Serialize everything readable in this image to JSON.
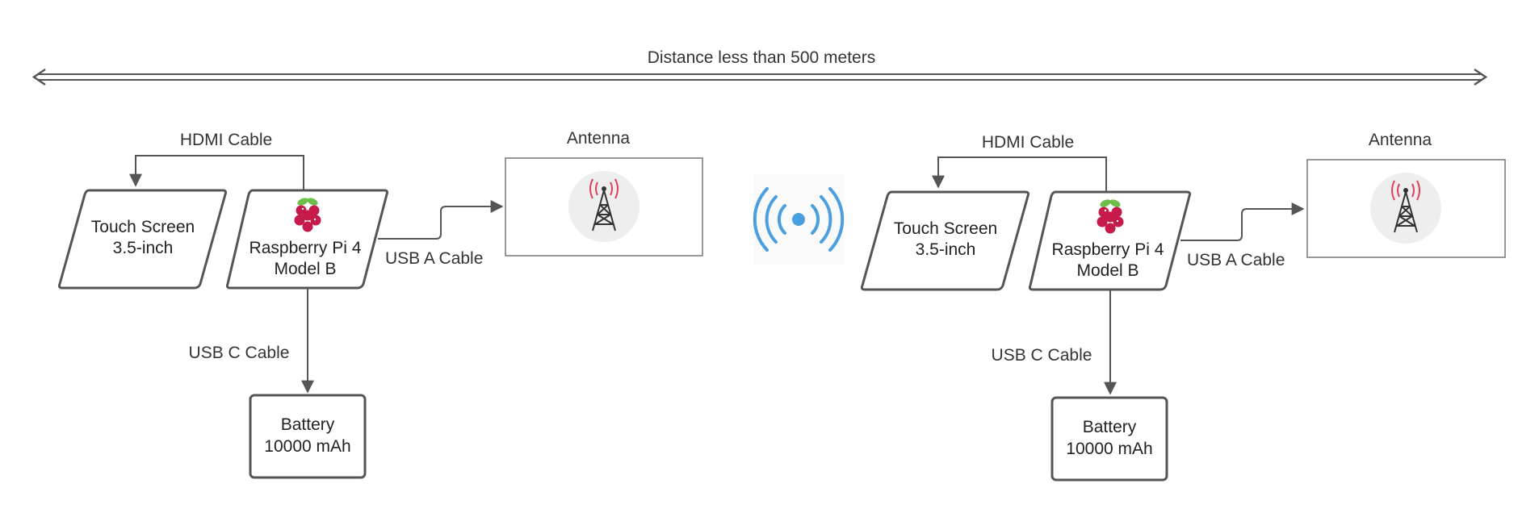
{
  "distance_label": "Distance less than 500 meters",
  "left": {
    "hdmi_label": "HDMI Cable",
    "antenna_label": "Antenna",
    "touch_screen": [
      "Touch Screen",
      "3.5-inch"
    ],
    "raspberry_pi": [
      "Raspberry Pi 4",
      "Model B"
    ],
    "usb_a_label": "USB A Cable",
    "usb_c_label": "USB C Cable",
    "battery": [
      "Battery",
      "10000 mAh"
    ]
  },
  "right": {
    "hdmi_label": "HDMI Cable",
    "antenna_label": "Antenna",
    "touch_screen": [
      "Touch Screen",
      "3.5-inch"
    ],
    "raspberry_pi": [
      "Raspberry Pi 4",
      "Model B"
    ],
    "usb_a_label": "USB A Cable",
    "usb_c_label": "USB C Cable",
    "battery": [
      "Battery",
      "10000 mAh"
    ]
  },
  "colors": {
    "wireless_icon": "#4a9fe0",
    "tower_signal": "#e0405a",
    "raspberry": "#c51a4a",
    "leaf": "#6cc04a",
    "edge": "#555555"
  },
  "icons": {
    "wireless": "wireless-signal-icon",
    "antenna": "antenna-tower-icon",
    "raspberry": "raspberry-pi-logo-icon"
  }
}
